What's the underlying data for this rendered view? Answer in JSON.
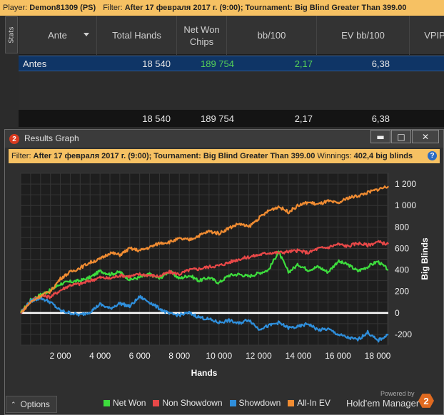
{
  "topbar": {
    "player_label": "Player:",
    "player": "Demon81309 (PS)",
    "filter_label": "Filter:",
    "filter": "After 17 февраля 2017 г. (9:00); Tournament: Big Blind Greater Than 399.00"
  },
  "stats": {
    "tab_label": "Stats",
    "columns": [
      "Ante",
      "Total Hands",
      "Net Won Chips",
      "bb/100",
      "EV bb/100",
      "VPIP"
    ],
    "rows": [
      {
        "ante": "Antes",
        "total_hands": "18 540",
        "net_won": "189 754",
        "bb100": "2,17",
        "ev_bb100": "6,38"
      }
    ],
    "totals": {
      "total_hands": "18 540",
      "net_won": "189 754",
      "bb100": "2,17",
      "ev_bb100": "6,38"
    }
  },
  "graph_window": {
    "title": "Results Graph",
    "filter_label": "Filter:",
    "filter": "After 17 февраля 2017 г. (9:00); Tournament: Big Blind Greater Than 399.00",
    "winnings_label": "Winnings:",
    "winnings": "402,4 big blinds",
    "options_label": "Options",
    "powered_by": "Powered by",
    "brand": "Hold'em Manager",
    "brand_badge": "2"
  },
  "chart_data": {
    "type": "line",
    "xlabel": "Hands",
    "ylabel": "Big Blinds",
    "xlim": [
      0,
      18540
    ],
    "ylim": [
      -300,
      1300
    ],
    "x_ticks": [
      2000,
      4000,
      6000,
      8000,
      10000,
      12000,
      14000,
      16000,
      18000
    ],
    "x_tick_labels": [
      "2 000",
      "4 000",
      "6 000",
      "8 000",
      "10 000",
      "12 000",
      "14 000",
      "16 000",
      "18 000"
    ],
    "y_ticks": [
      -200,
      0,
      200,
      400,
      600,
      800,
      1000,
      1200
    ],
    "y_tick_labels": [
      "-200",
      "0",
      "200",
      "400",
      "600",
      "800",
      "1 000",
      "1 200"
    ],
    "grid": true,
    "legend_position": "bottom",
    "series": [
      {
        "name": "Net Won",
        "color": "#3ddc3d",
        "x": [
          0,
          500,
          1000,
          1500,
          2000,
          2500,
          3000,
          3500,
          4000,
          4500,
          5000,
          5500,
          6000,
          6500,
          7000,
          7500,
          8000,
          8500,
          9000,
          9500,
          10000,
          10500,
          11000,
          11500,
          12000,
          12500,
          13000,
          13500,
          14000,
          14500,
          15000,
          15500,
          16000,
          16500,
          17000,
          17500,
          18000,
          18540
        ],
        "values": [
          0,
          120,
          170,
          210,
          270,
          290,
          300,
          330,
          390,
          360,
          380,
          310,
          330,
          360,
          320,
          390,
          320,
          350,
          300,
          330,
          280,
          350,
          360,
          340,
          370,
          400,
          570,
          380,
          450,
          400,
          430,
          380,
          480,
          450,
          390,
          430,
          480,
          402
        ]
      },
      {
        "name": "Non Showdown",
        "color": "#e84848",
        "x": [
          0,
          500,
          1000,
          1500,
          2000,
          2500,
          3000,
          3500,
          4000,
          4500,
          5000,
          5500,
          6000,
          6500,
          7000,
          7500,
          8000,
          8500,
          9000,
          9500,
          10000,
          10500,
          11000,
          11500,
          12000,
          12500,
          13000,
          13500,
          14000,
          14500,
          15000,
          15500,
          16000,
          16500,
          17000,
          17500,
          18000,
          18540
        ],
        "values": [
          0,
          110,
          160,
          150,
          210,
          260,
          270,
          300,
          330,
          320,
          350,
          340,
          360,
          350,
          340,
          380,
          360,
          400,
          410,
          430,
          440,
          470,
          500,
          520,
          540,
          560,
          560,
          570,
          580,
          560,
          600,
          610,
          640,
          620,
          650,
          630,
          660,
          640
        ]
      },
      {
        "name": "Showdown",
        "color": "#2f8fdc",
        "x": [
          0,
          500,
          1000,
          1500,
          2000,
          2500,
          3000,
          3500,
          4000,
          4500,
          5000,
          5500,
          6000,
          6500,
          7000,
          7500,
          8000,
          8500,
          9000,
          9500,
          10000,
          10500,
          11000,
          11500,
          12000,
          12500,
          13000,
          13500,
          14000,
          14500,
          15000,
          15500,
          16000,
          16500,
          17000,
          17500,
          18000,
          18540
        ],
        "values": [
          0,
          110,
          140,
          100,
          20,
          0,
          -20,
          10,
          80,
          40,
          90,
          60,
          150,
          100,
          40,
          -10,
          -20,
          0,
          -40,
          -60,
          -90,
          -70,
          -100,
          -60,
          -150,
          -120,
          -90,
          -140,
          -130,
          -100,
          -160,
          -150,
          -200,
          -230,
          -250,
          -180,
          -260,
          -200
        ]
      },
      {
        "name": "All-In EV",
        "color": "#f08c32",
        "x": [
          0,
          500,
          1000,
          1500,
          2000,
          2500,
          3000,
          3500,
          4000,
          4500,
          5000,
          5500,
          6000,
          6500,
          7000,
          7500,
          8000,
          8500,
          9000,
          9500,
          10000,
          10500,
          11000,
          11500,
          12000,
          12500,
          13000,
          13500,
          14000,
          14500,
          15000,
          15500,
          16000,
          16500,
          17000,
          17500,
          18000,
          18540
        ],
        "values": [
          0,
          100,
          160,
          200,
          320,
          380,
          420,
          470,
          500,
          560,
          540,
          600,
          580,
          610,
          650,
          660,
          690,
          680,
          720,
          760,
          740,
          790,
          830,
          800,
          880,
          950,
          990,
          940,
          1000,
          1030,
          1010,
          1040,
          1020,
          1070,
          1090,
          1120,
          1150,
          1180
        ]
      }
    ]
  }
}
